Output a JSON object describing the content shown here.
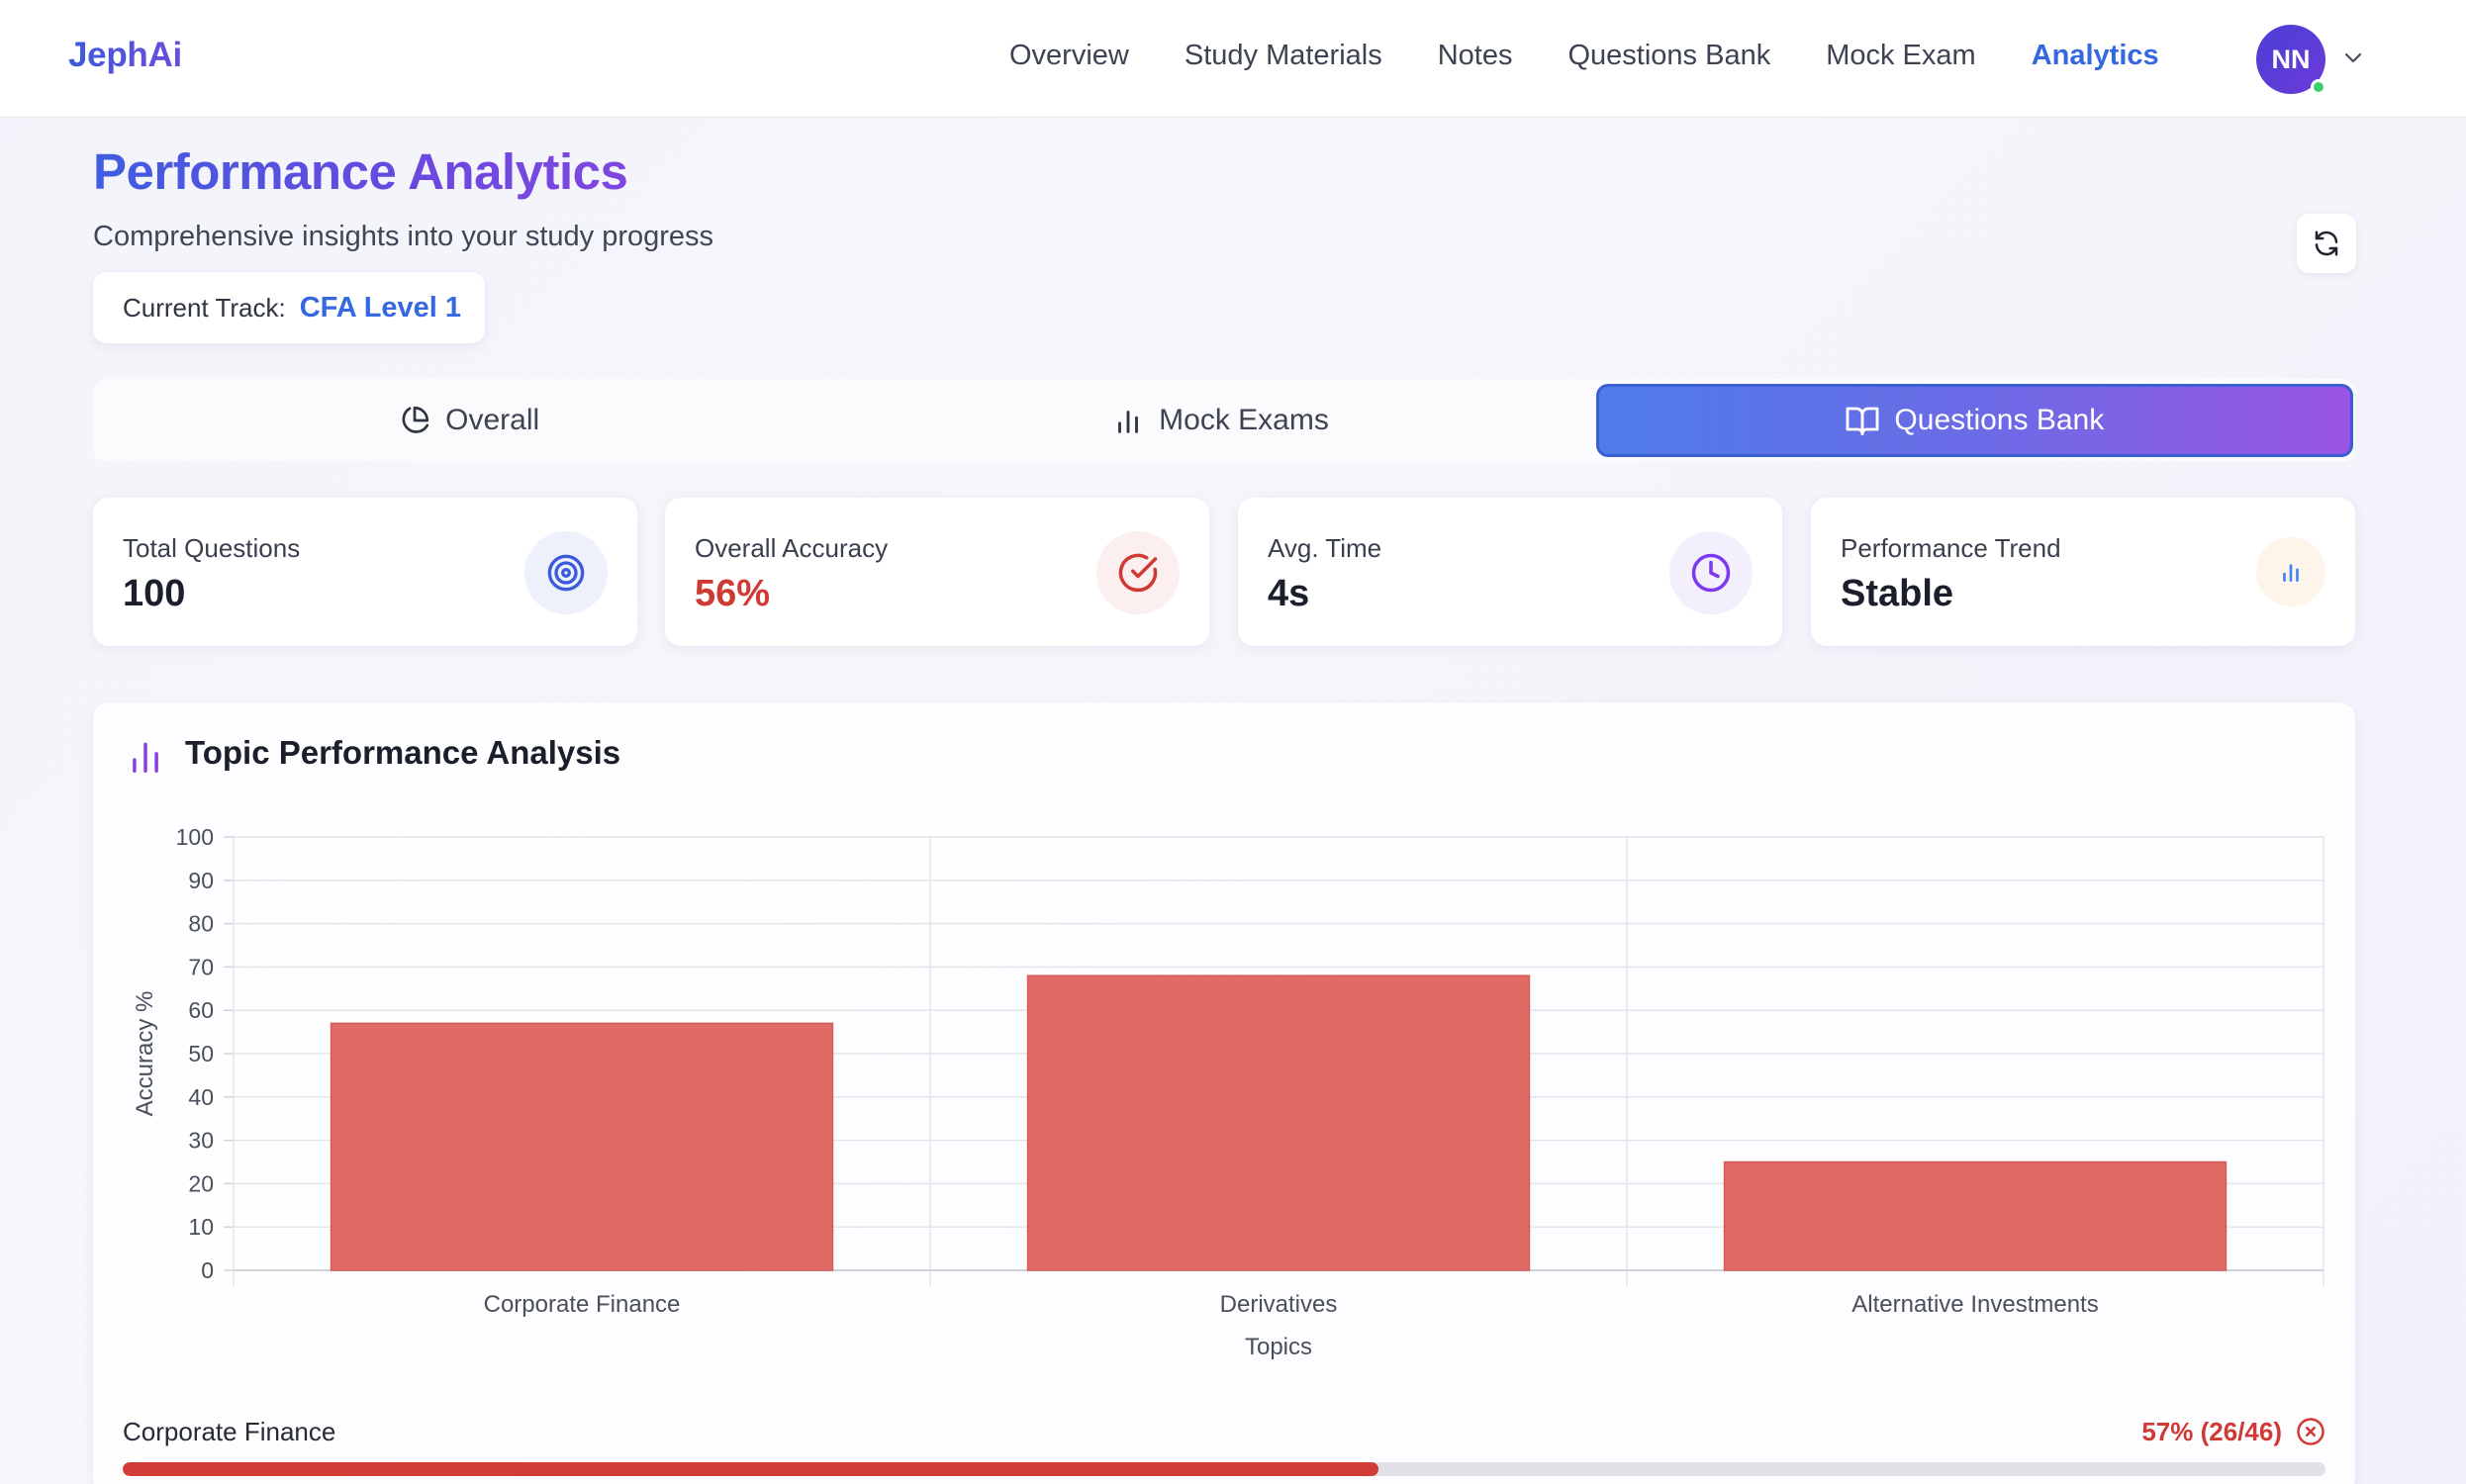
{
  "nav": {
    "brand": "JephAi",
    "links": [
      {
        "label": "Overview",
        "active": false
      },
      {
        "label": "Study Materials",
        "active": false
      },
      {
        "label": "Notes",
        "active": false
      },
      {
        "label": "Questions Bank",
        "active": false
      },
      {
        "label": "Mock Exam",
        "active": false
      },
      {
        "label": "Analytics",
        "active": true
      }
    ],
    "avatar_initials": "NN"
  },
  "header": {
    "title": "Performance Analytics",
    "subtitle": "Comprehensive insights into your study progress",
    "track_label": "Current Track:",
    "track_value": "CFA Level 1"
  },
  "tabs": [
    {
      "label": "Overall",
      "icon": "pie-chart-icon",
      "active": false
    },
    {
      "label": "Mock Exams",
      "icon": "bar-chart-icon",
      "active": false
    },
    {
      "label": "Questions Bank",
      "icon": "book-open-icon",
      "active": true
    }
  ],
  "stats": [
    {
      "label": "Total Questions",
      "value": "100",
      "icon": "target-icon",
      "color": "#3b5bdb"
    },
    {
      "label": "Overall Accuracy",
      "value": "56%",
      "icon": "check-circle-icon",
      "color": "#d03a35"
    },
    {
      "label": "Avg. Time",
      "value": "4s",
      "icon": "clock-icon",
      "color": "#7c3aed"
    },
    {
      "label": "Performance Trend",
      "value": "Stable",
      "icon": "bar-chart-icon",
      "color": "#3b82f6"
    }
  ],
  "chart_section": {
    "title": "Topic Performance Analysis"
  },
  "chart_data": {
    "type": "bar",
    "categories": [
      "Corporate Finance",
      "Derivatives",
      "Alternative Investments"
    ],
    "values": [
      57,
      68,
      25
    ],
    "xlabel": "Topics",
    "ylabel": "Accuracy %",
    "ylim": [
      0,
      100
    ],
    "yticks": [
      0,
      10,
      20,
      30,
      40,
      50,
      60,
      70,
      80,
      90,
      100
    ],
    "grid": true,
    "bar_color": "#e06b66"
  },
  "topic_rows": [
    {
      "label": "Corporate Finance",
      "stat": "57% (26/46)",
      "progress": 0.57,
      "color": "#d33b37"
    }
  ]
}
